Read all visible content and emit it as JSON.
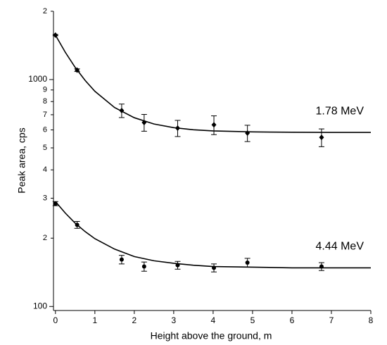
{
  "chart_data": {
    "type": "scatter",
    "xlabel": "Height above the ground, m",
    "ylabel": "Peak area, cps",
    "xlim": [
      -0.05,
      8
    ],
    "xticks": [
      0,
      1,
      2,
      3,
      4,
      5,
      6,
      7,
      8
    ],
    "ylim": [
      96,
      2000
    ],
    "log_y": true,
    "yticks": [
      100,
      {
        "value": 200,
        "label": "2"
      },
      {
        "value": 300,
        "label": "3"
      },
      {
        "value": 400,
        "label": "4"
      },
      {
        "value": 500,
        "label": "5"
      },
      {
        "value": 600,
        "label": "6"
      },
      {
        "value": 700,
        "label": "7"
      },
      {
        "value": 800,
        "label": "8"
      },
      {
        "value": 900,
        "label": "9"
      },
      1000,
      {
        "value": 2000,
        "label": "2"
      }
    ],
    "grid": false,
    "series": [
      {
        "name": "1.78 MeV",
        "color": "#000000",
        "marker": "diamond",
        "x": [
          0,
          0.55,
          1.68,
          2.25,
          3.1,
          4.02,
          4.87,
          6.75
        ],
        "values": [
          1570,
          1100,
          730,
          647,
          611,
          632,
          581,
          556
        ],
        "errors": [
          10,
          15,
          50,
          55,
          50,
          60,
          48,
          50
        ],
        "fit_x": [
          0,
          0.25,
          0.5,
          0.75,
          1,
          1.5,
          2,
          2.5,
          3,
          3.5,
          4,
          5,
          6,
          7,
          8
        ],
        "fit_values": [
          1570,
          1319,
          1132,
          993,
          888,
          753,
          679,
          637,
          614,
          601,
          594,
          588,
          586,
          585,
          585
        ]
      },
      {
        "name": "4.44 MeV",
        "color": "#000000",
        "marker": "circle",
        "x": [
          0,
          0.55,
          1.68,
          2.25,
          3.1,
          4.02,
          4.87,
          6.75
        ],
        "values": [
          284,
          229,
          161,
          150,
          152,
          148,
          156,
          150
        ],
        "errors": [
          6,
          8,
          7,
          7,
          6,
          6,
          7,
          6
        ],
        "fit_x": [
          0,
          0.25,
          0.5,
          0.75,
          1,
          1.5,
          2,
          2.5,
          3,
          3.5,
          4,
          5,
          6,
          7,
          8
        ],
        "fit_values": [
          290,
          258,
          233,
          214,
          199,
          179,
          166,
          159,
          155,
          152,
          150,
          149,
          148,
          148,
          148
        ]
      }
    ]
  }
}
